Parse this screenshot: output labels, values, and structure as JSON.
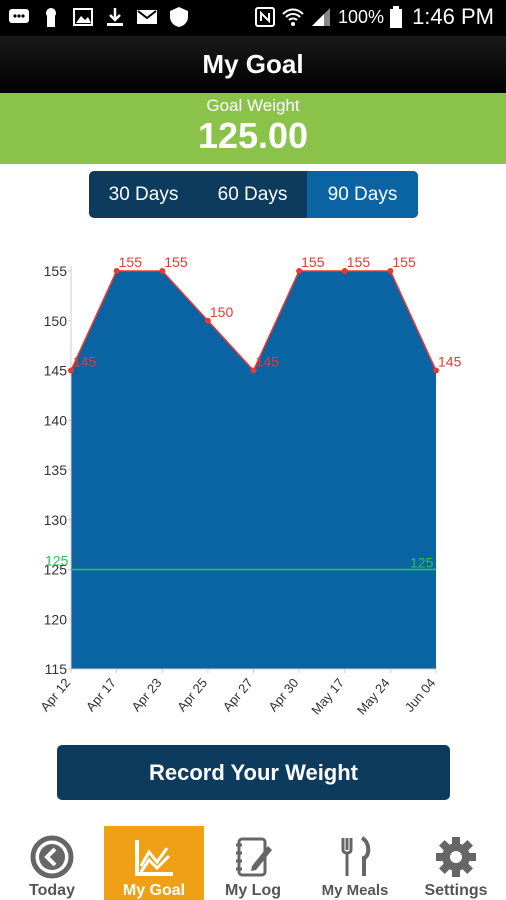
{
  "status_bar": {
    "left_icons": [
      "chat-icon",
      "keyhole-icon",
      "image-icon",
      "download-icon",
      "mail-icon",
      "shield-icon"
    ],
    "battery": "100%",
    "time": "1:46 PM"
  },
  "header": {
    "title": "My Goal"
  },
  "goal": {
    "label": "Goal Weight",
    "value": "125.00"
  },
  "range_tabs": [
    {
      "label": "30 Days",
      "active": false
    },
    {
      "label": "60 Days",
      "active": false
    },
    {
      "label": "90 Days",
      "active": true
    }
  ],
  "colors": {
    "area": "#0a63a3",
    "line": "#e53935",
    "goal_line": "#22cc44",
    "accent": "#8bc34a",
    "active_tab": "#f0a015",
    "dark_blue": "#0c3b5e"
  },
  "chart_data": {
    "type": "area",
    "categories": [
      "Apr 12",
      "Apr 17",
      "Apr 23",
      "Apr 25",
      "Apr 27",
      "Apr 30",
      "May 17",
      "May 24",
      "Jun 04"
    ],
    "values": [
      145,
      155,
      155,
      150,
      145,
      155,
      155,
      155,
      145
    ],
    "data_labels": [
      "145",
      "155",
      "155",
      "150",
      "145",
      "155",
      "155",
      "155",
      "145"
    ],
    "goal_value": 125,
    "goal_label": "125",
    "ylim": [
      115,
      155
    ],
    "yticks": [
      "115",
      "120",
      "125",
      "130",
      "135",
      "140",
      "145",
      "150",
      "155"
    ],
    "grid": false
  },
  "record_button": {
    "label": "Record Your Weight"
  },
  "nav": [
    {
      "label": "Today",
      "icon": "clock-back-icon",
      "active": false
    },
    {
      "label": "My Goal",
      "icon": "chart-icon",
      "active": true
    },
    {
      "label": "My Log",
      "icon": "notebook-icon",
      "active": false
    },
    {
      "label": "My Meals",
      "icon": "fork-knife-icon",
      "active": false
    },
    {
      "label": "Settings",
      "icon": "gear-icon",
      "active": false
    }
  ]
}
